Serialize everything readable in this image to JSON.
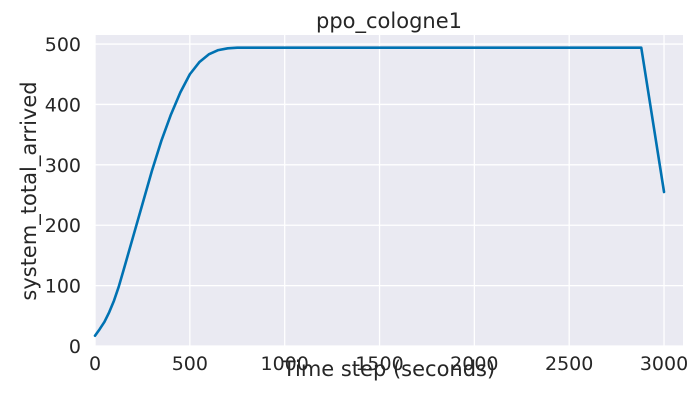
{
  "chart_data": {
    "type": "line",
    "title": "ppo_cologne1",
    "xlabel": "Time step (seconds)",
    "ylabel": "system_total_arrived",
    "xlim": [
      0,
      3100
    ],
    "ylim": [
      0,
      515
    ],
    "xticks": [
      0,
      500,
      1000,
      1500,
      2000,
      2500,
      3000
    ],
    "yticks": [
      0,
      100,
      200,
      300,
      400,
      500
    ],
    "grid": true,
    "legend": "none",
    "colors": {
      "background": "#eaeaf2",
      "line": "#0072b2"
    },
    "series": [
      {
        "x": [
          0,
          25,
          50,
          75,
          100,
          125,
          150,
          200,
          250,
          300,
          350,
          400,
          450,
          500,
          550,
          600,
          650,
          700,
          750,
          800,
          1000,
          1500,
          2000,
          2500,
          2880,
          3000
        ],
        "y": [
          17,
          28,
          40,
          56,
          75,
          98,
          125,
          180,
          235,
          290,
          340,
          383,
          420,
          450,
          470,
          483,
          490,
          493,
          494,
          494,
          494,
          494,
          494,
          494,
          494,
          255
        ]
      }
    ]
  }
}
